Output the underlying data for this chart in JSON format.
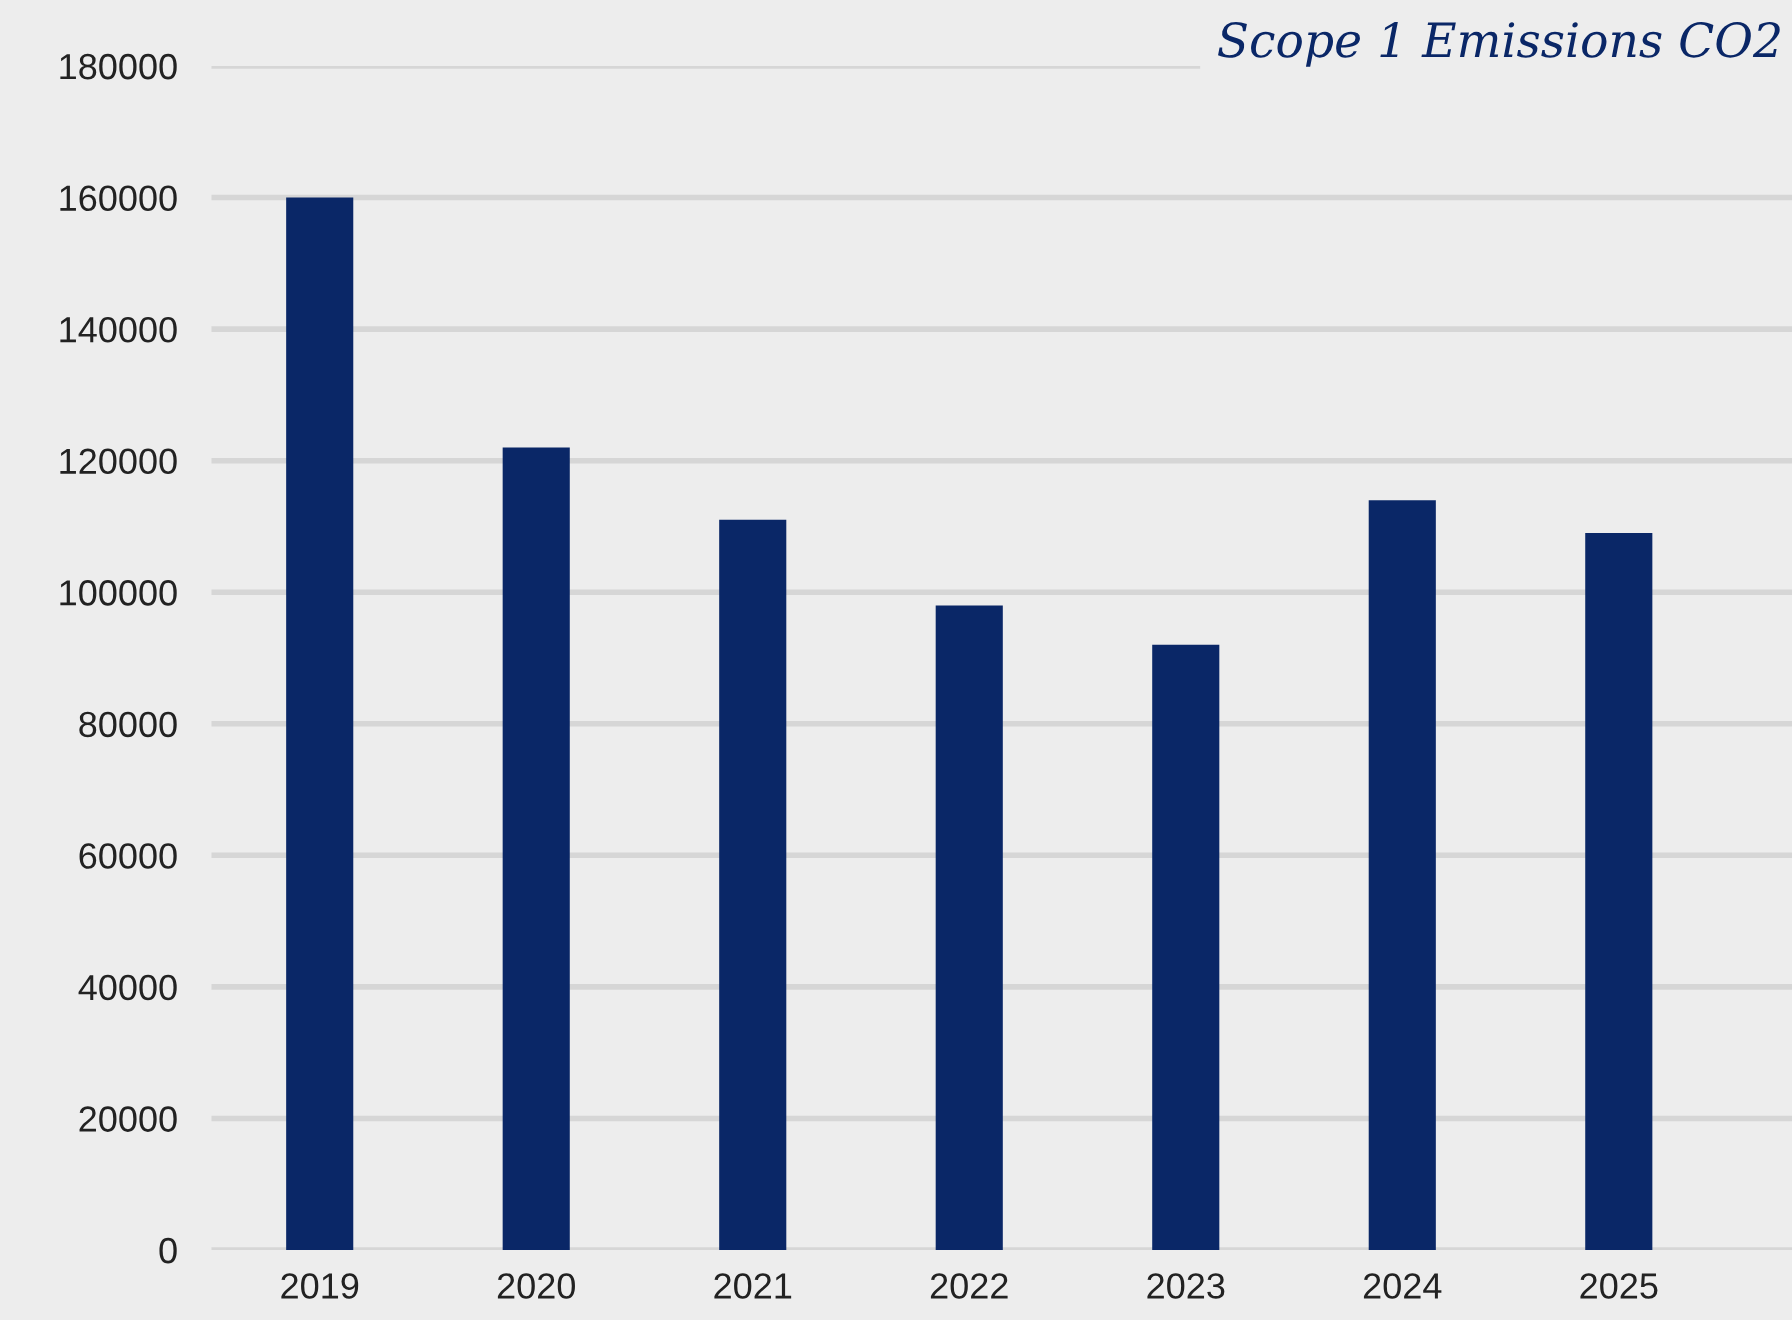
{
  "chart_data": {
    "type": "bar",
    "title": "Scope 1 Emissions CO2",
    "categories": [
      "2019",
      "2020",
      "2021",
      "2022",
      "2023",
      "2024",
      "2025"
    ],
    "values": [
      160000,
      122000,
      111000,
      98000,
      92000,
      114000,
      109000
    ],
    "color": "#0a2767",
    "ylim": [
      0,
      180000
    ],
    "yticks": [
      0,
      20000,
      40000,
      60000,
      80000,
      100000,
      120000,
      140000,
      160000,
      180000
    ],
    "grid": "y"
  }
}
